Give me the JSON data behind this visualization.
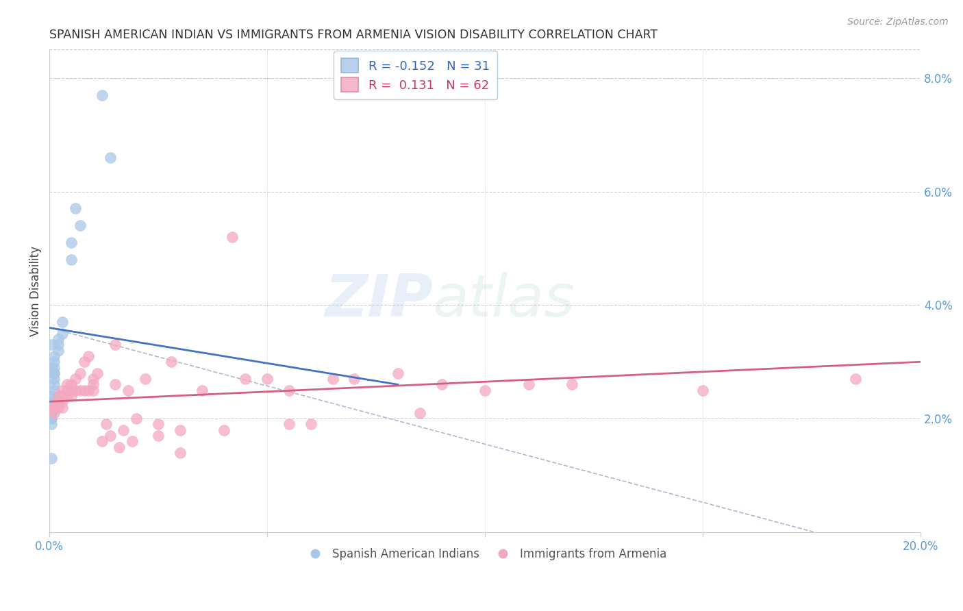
{
  "title": "SPANISH AMERICAN INDIAN VS IMMIGRANTS FROM ARMENIA VISION DISABILITY CORRELATION CHART",
  "source": "Source: ZipAtlas.com",
  "ylabel": "Vision Disability",
  "xlim": [
    0.0,
    0.2
  ],
  "ylim": [
    0.0,
    0.085
  ],
  "x_ticks": [
    0.0,
    0.05,
    0.1,
    0.15,
    0.2
  ],
  "x_tick_labels": [
    "0.0%",
    "",
    "",
    "",
    "20.0%"
  ],
  "y_ticks_right": [
    0.02,
    0.04,
    0.06,
    0.08
  ],
  "y_tick_labels_right": [
    "2.0%",
    "4.0%",
    "6.0%",
    "8.0%"
  ],
  "watermark_zip": "ZIP",
  "watermark_atlas": "atlas",
  "blue_scatter_x": [
    0.012,
    0.014,
    0.006,
    0.007,
    0.005,
    0.005,
    0.003,
    0.003,
    0.002,
    0.002,
    0.002,
    0.001,
    0.001,
    0.001,
    0.001,
    0.001,
    0.001,
    0.001,
    0.001,
    0.0005,
    0.0005,
    0.0005,
    0.0005,
    0.0005,
    0.0005,
    0.0005,
    0.0005,
    0.0005,
    0.0005,
    0.0005,
    0.0005
  ],
  "blue_scatter_y": [
    0.077,
    0.066,
    0.057,
    0.054,
    0.051,
    0.048,
    0.037,
    0.035,
    0.034,
    0.033,
    0.032,
    0.031,
    0.03,
    0.029,
    0.028,
    0.028,
    0.027,
    0.026,
    0.025,
    0.024,
    0.023,
    0.022,
    0.022,
    0.021,
    0.021,
    0.02,
    0.02,
    0.019,
    0.013,
    0.033,
    0.029
  ],
  "pink_scatter_x": [
    0.001,
    0.001,
    0.001,
    0.002,
    0.002,
    0.002,
    0.003,
    0.003,
    0.003,
    0.003,
    0.004,
    0.004,
    0.004,
    0.005,
    0.005,
    0.005,
    0.006,
    0.006,
    0.007,
    0.007,
    0.008,
    0.008,
    0.009,
    0.009,
    0.01,
    0.01,
    0.01,
    0.011,
    0.012,
    0.013,
    0.014,
    0.015,
    0.015,
    0.016,
    0.017,
    0.018,
    0.019,
    0.02,
    0.022,
    0.025,
    0.025,
    0.028,
    0.03,
    0.03,
    0.035,
    0.04,
    0.042,
    0.045,
    0.05,
    0.055,
    0.055,
    0.06,
    0.065,
    0.07,
    0.08,
    0.085,
    0.09,
    0.1,
    0.11,
    0.12,
    0.15,
    0.185
  ],
  "pink_scatter_y": [
    0.022,
    0.022,
    0.021,
    0.024,
    0.023,
    0.022,
    0.025,
    0.024,
    0.023,
    0.022,
    0.026,
    0.025,
    0.024,
    0.026,
    0.025,
    0.024,
    0.027,
    0.025,
    0.028,
    0.025,
    0.03,
    0.025,
    0.031,
    0.025,
    0.027,
    0.026,
    0.025,
    0.028,
    0.016,
    0.019,
    0.017,
    0.033,
    0.026,
    0.015,
    0.018,
    0.025,
    0.016,
    0.02,
    0.027,
    0.019,
    0.017,
    0.03,
    0.018,
    0.014,
    0.025,
    0.018,
    0.052,
    0.027,
    0.027,
    0.025,
    0.019,
    0.019,
    0.027,
    0.027,
    0.028,
    0.021,
    0.026,
    0.025,
    0.026,
    0.026,
    0.025,
    0.027
  ],
  "blue_line": [
    [
      0.0,
      0.036
    ],
    [
      0.08,
      0.026
    ]
  ],
  "pink_line": [
    [
      0.0,
      0.023
    ],
    [
      0.2,
      0.03
    ]
  ],
  "dashed_line": [
    [
      0.0,
      0.036
    ],
    [
      0.2,
      -0.005
    ]
  ],
  "scatter_color_blue": "#a8c8e8",
  "scatter_color_pink": "#f4a8c0",
  "line_color_blue": "#4472c4",
  "line_color_pink": "#d46080",
  "line_color_dashed": "#b0b8d0",
  "legend_box_blue": "#b8d0ec",
  "legend_box_pink": "#f4b8cc",
  "legend_edge_blue": "#90b8e0",
  "legend_edge_pink": "#e090a8",
  "background_color": "#ffffff",
  "grid_color": "#cccccc",
  "legend1_label1": "R = -0.152   N = 31",
  "legend1_label2": "R =  0.131   N = 62",
  "legend2_label1": "Spanish American Indians",
  "legend2_label2": "Immigrants from Armenia"
}
